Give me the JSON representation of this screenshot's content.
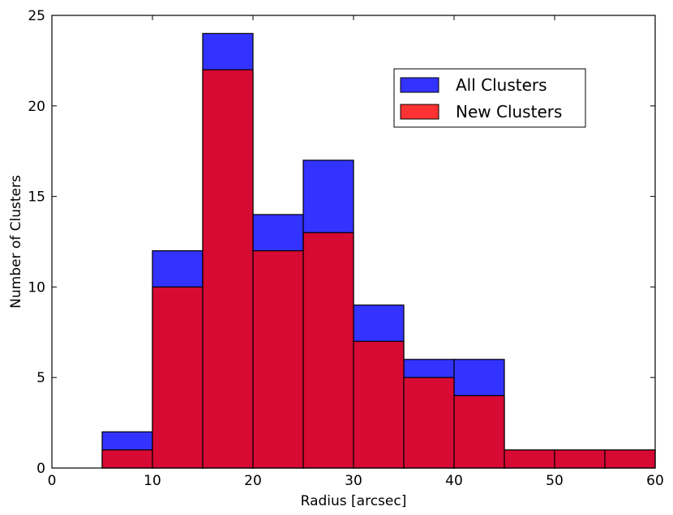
{
  "chart_data": {
    "type": "bar",
    "subtype": "overlaid-histogram",
    "xlabel": "Radius [arcsec]",
    "ylabel": "Number of Clusters",
    "xlim": [
      0,
      60
    ],
    "ylim": [
      0,
      25
    ],
    "xticks": [
      0,
      10,
      20,
      30,
      40,
      50,
      60
    ],
    "yticks": [
      0,
      5,
      10,
      15,
      20,
      25
    ],
    "grid": false,
    "legend_position": "top-right",
    "bin_edges": [
      5,
      10,
      15,
      20,
      25,
      30,
      35,
      40,
      45,
      50,
      55,
      60
    ],
    "series": [
      {
        "name": "All Clusters",
        "color": "#3333ff",
        "values": [
          2,
          12,
          24,
          14,
          17,
          9,
          6,
          6,
          1,
          1,
          1
        ]
      },
      {
        "name": "New Clusters",
        "color": "#ff3333",
        "draw_color": "#d60a33",
        "values": [
          1,
          10,
          22,
          12,
          13,
          7,
          5,
          4,
          1,
          1,
          1
        ]
      }
    ]
  }
}
